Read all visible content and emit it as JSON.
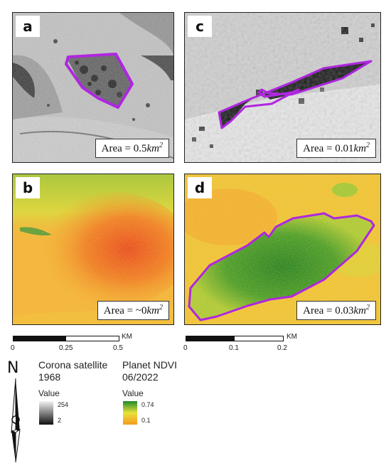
{
  "panels": {
    "a": {
      "label": "a",
      "area_prefix": "Area = 0.5",
      "area_unit": "km",
      "area_exp": "2"
    },
    "b": {
      "label": "b",
      "area_prefix": "Area = ~0",
      "area_unit": "km",
      "area_exp": "2"
    },
    "c": {
      "label": "c",
      "area_prefix": "Area = 0.01",
      "area_unit": "km",
      "area_exp": "2"
    },
    "d": {
      "label": "d",
      "area_prefix": "Area = 0.03",
      "area_unit": "km",
      "area_exp": "2"
    }
  },
  "scalebars": {
    "left": {
      "unit": "KM",
      "ticks": [
        "0",
        "0.25",
        "0.5"
      ]
    },
    "right": {
      "unit": "KM",
      "ticks": [
        "0",
        "0.1",
        "0.2"
      ]
    }
  },
  "north_arrow": {
    "label": "N"
  },
  "legend": {
    "corona": {
      "title_line1": "Corona satellite",
      "title_line2": "1968",
      "value_label": "Value",
      "max": "254",
      "min": "2"
    },
    "planet": {
      "title_line1": "Planet NDVI",
      "title_line2": "06/2022",
      "value_label": "Value",
      "max": "0.74",
      "min": "0.1"
    }
  },
  "colors": {
    "polygon_outline": "#b026e0",
    "ndvi_high": "#1f8a2a",
    "ndvi_low": "#f59a1e",
    "gray_high": "#f2f2f2",
    "gray_low": "#111111"
  }
}
